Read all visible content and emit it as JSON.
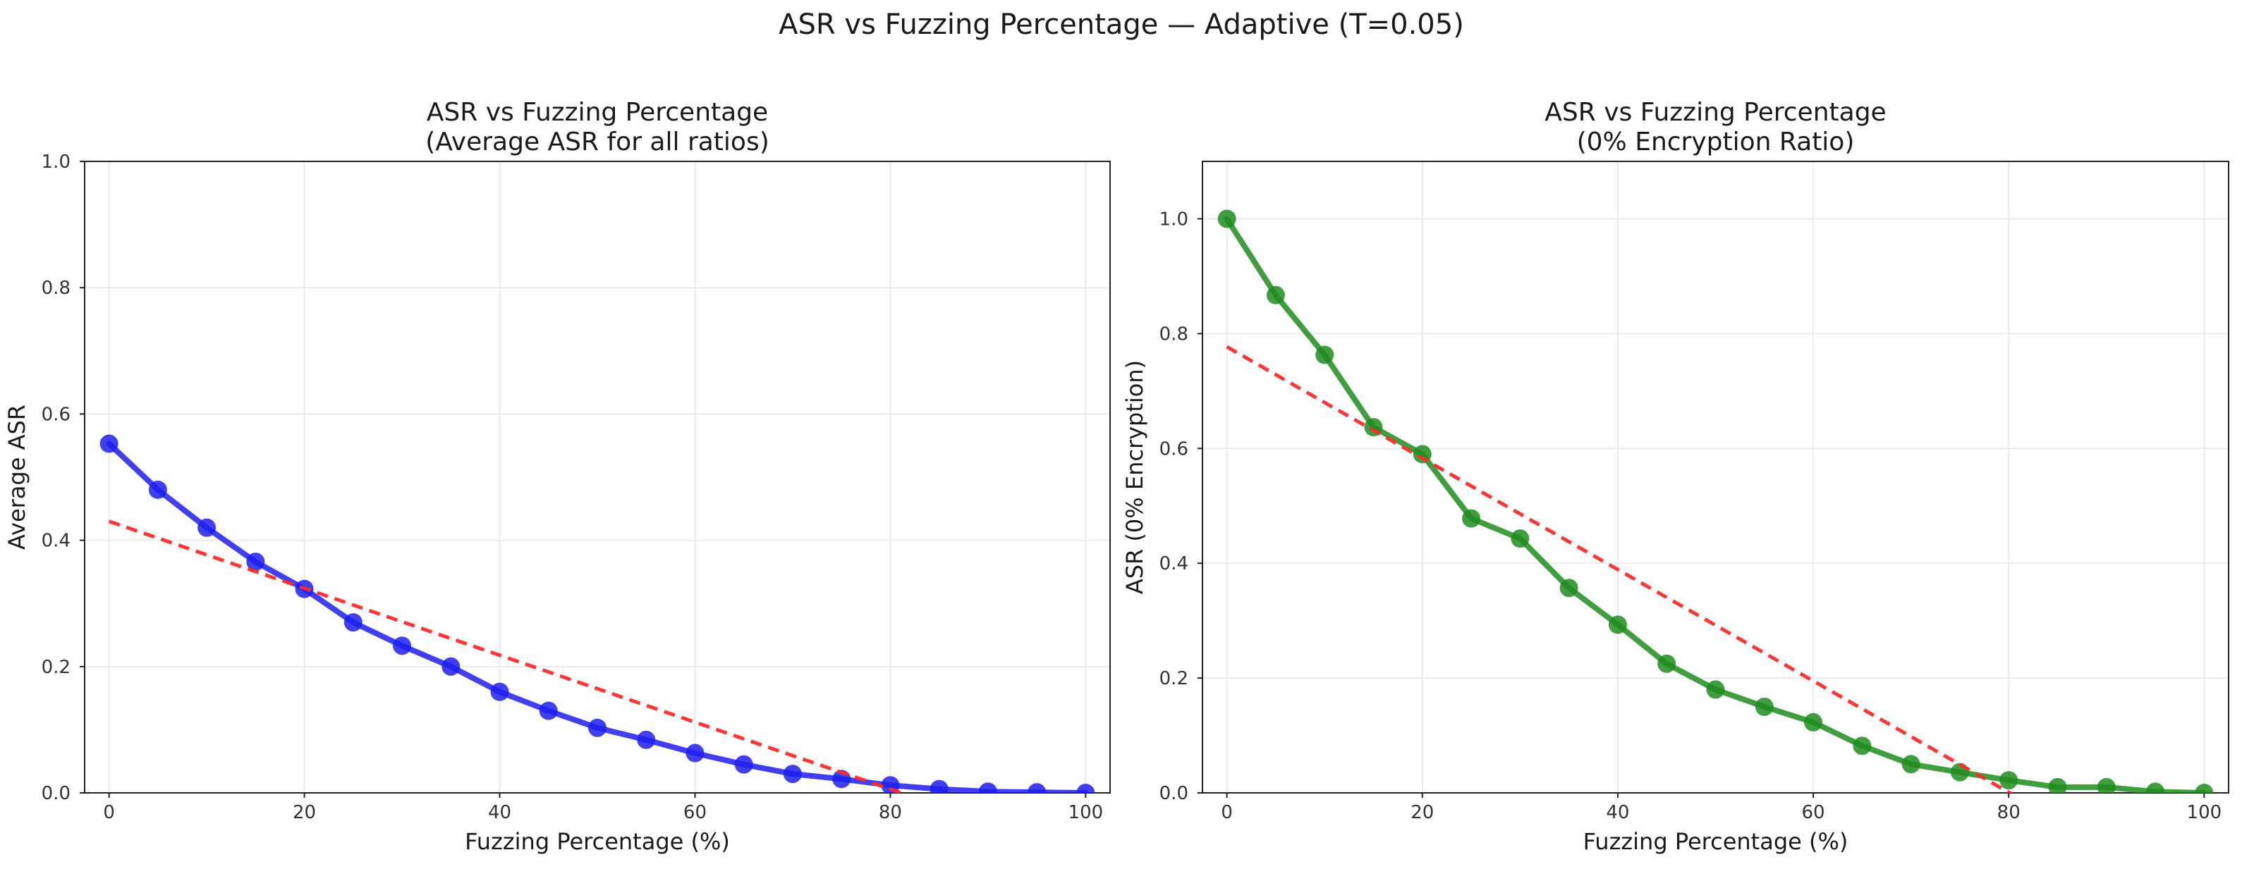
{
  "figure": {
    "suptitle": "ASR vs Fuzzing Percentage — Adaptive (T=0.05)"
  },
  "colors": {
    "trend": "#ff2b2b",
    "grid": "#e6e6e6",
    "axes": "#222222"
  },
  "chart_data": [
    {
      "type": "line",
      "title_line1": "ASR vs Fuzzing Percentage",
      "title_line2": "(Average ASR for all ratios)",
      "xlabel": "Fuzzing Percentage (%)",
      "ylabel": "Average ASR",
      "xlim": [
        -2.5,
        102.5
      ],
      "ylim": [
        0,
        1.0
      ],
      "xticks": [
        0,
        20,
        40,
        60,
        80,
        100
      ],
      "yticks": [
        0.0,
        0.2,
        0.4,
        0.6,
        0.8,
        1.0
      ],
      "grid": true,
      "series": [
        {
          "color": "#1f1fee",
          "marker": "circle",
          "x": [
            0,
            5,
            10,
            15,
            20,
            25,
            30,
            35,
            40,
            45,
            50,
            55,
            60,
            65,
            70,
            75,
            80,
            85,
            90,
            95,
            100
          ],
          "y": [
            0.553,
            0.48,
            0.42,
            0.366,
            0.323,
            0.27,
            0.233,
            0.2,
            0.16,
            0.13,
            0.103,
            0.084,
            0.063,
            0.045,
            0.03,
            0.022,
            0.012,
            0.006,
            0.002,
            0.001,
            0.0
          ]
        }
      ],
      "trendline": {
        "style": "dashed",
        "x": [
          0,
          100
        ],
        "y": [
          0.43,
          -0.1
        ]
      }
    },
    {
      "type": "line",
      "title_line1": "ASR vs Fuzzing Percentage",
      "title_line2": "(0% Encryption Ratio)",
      "xlabel": "Fuzzing Percentage (%)",
      "ylabel": "ASR (0% Encryption)",
      "xlim": [
        -2.5,
        102.5
      ],
      "ylim": [
        0,
        1.1
      ],
      "xticks": [
        0,
        20,
        40,
        60,
        80,
        100
      ],
      "yticks": [
        0.0,
        0.2,
        0.4,
        0.6,
        0.8,
        1.0
      ],
      "grid": true,
      "series": [
        {
          "color": "#1e8c1e",
          "marker": "circle",
          "x": [
            0,
            5,
            10,
            15,
            20,
            25,
            30,
            35,
            40,
            45,
            50,
            55,
            60,
            65,
            70,
            75,
            80,
            85,
            90,
            95,
            100
          ],
          "y": [
            1.0,
            0.867,
            0.763,
            0.637,
            0.59,
            0.478,
            0.443,
            0.357,
            0.293,
            0.225,
            0.18,
            0.15,
            0.123,
            0.082,
            0.05,
            0.036,
            0.022,
            0.01,
            0.01,
            0.002,
            0.0
          ]
        }
      ],
      "trendline": {
        "style": "dashed",
        "x": [
          0,
          100
        ],
        "y": [
          0.777,
          -0.193
        ]
      }
    }
  ]
}
